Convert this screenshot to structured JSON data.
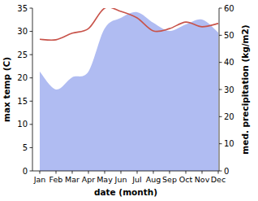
{
  "chart_data": {
    "type": "line",
    "x_label": "date (month)",
    "categories": [
      "Jan",
      "Feb",
      "Mar",
      "Apr",
      "May",
      "Jun",
      "Jul",
      "Aug",
      "Sep",
      "Oct",
      "Nov",
      "Dec"
    ],
    "ylim": [
      0,
      35
    ],
    "yticks": [
      0,
      5,
      10,
      15,
      20,
      25,
      30,
      35
    ],
    "y2lim": [
      0,
      60
    ],
    "y2ticks": [
      0,
      10,
      20,
      30,
      40,
      50,
      60
    ],
    "series": [
      {
        "name": "med. precipitation (kg/m2)",
        "type": "area",
        "axis": "y2",
        "color": "#b0bcf2",
        "values": [
          36.6,
          30,
          34.5,
          36.6,
          52.5,
          56.4,
          58.5,
          54.6,
          51.6,
          54,
          55.8,
          51
        ]
      },
      {
        "name": "max temp (C)",
        "type": "line",
        "color": "#c8534a",
        "values": [
          28.3,
          28.2,
          29.6,
          30.6,
          35,
          34.3,
          32.9,
          30.1,
          30.6,
          32,
          31,
          31.7
        ]
      }
    ]
  }
}
